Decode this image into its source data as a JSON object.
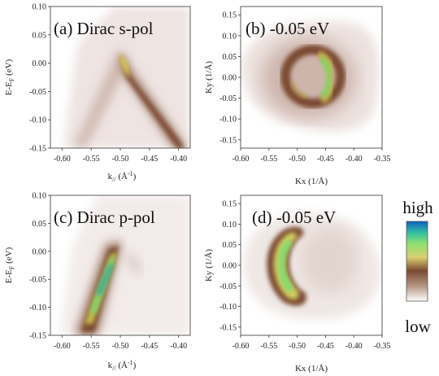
{
  "chart_data": [
    {
      "type": "heatmap",
      "panel": "(a)",
      "title": "(a)  Dirac s-pol",
      "xlabel": "k// (Å-1)",
      "ylabel": "E-EF (eV)",
      "xlim": [
        -0.62,
        -0.38
      ],
      "ylim": [
        -0.15,
        0.1
      ],
      "xticks": [
        "-0.60",
        "-0.55",
        "-0.50",
        "-0.45",
        "-0.40"
      ],
      "yticks": [
        "0.10",
        "0.05",
        "0.00",
        "-0.05",
        "-0.10",
        "-0.15"
      ],
      "feature": {
        "shape": "inverted-V band",
        "apex": [
          -0.5,
          0.02
        ],
        "peak_intensity": 0.75
      }
    },
    {
      "type": "heatmap",
      "panel": "(b)",
      "title": "(b)  -0.05 eV",
      "xlabel": "Kx (1/Å)",
      "ylabel": "Ky (1/Å)",
      "xlim": [
        -0.6,
        -0.35
      ],
      "ylim": [
        -0.17,
        0.17
      ],
      "xticks": [
        "-0.60",
        "-0.55",
        "-0.50",
        "-0.45",
        "-0.40",
        "-0.35"
      ],
      "yticks": [
        "0.15",
        "0.10",
        "0.05",
        "0.00",
        "-0.05",
        "-0.10",
        "-0.15"
      ],
      "feature": {
        "shape": "ring",
        "center": [
          -0.49,
          0.0
        ],
        "radius": 0.035,
        "peak_intensity": 0.9
      }
    },
    {
      "type": "heatmap",
      "panel": "(c)",
      "title": "(c)  Dirac p-pol",
      "xlabel": "k// (Å-1)",
      "ylabel": "E-EF (eV)",
      "xlim": [
        -0.62,
        -0.38
      ],
      "ylim": [
        -0.15,
        0.1
      ],
      "xticks": [
        "-0.60",
        "-0.55",
        "-0.50",
        "-0.45",
        "-0.40"
      ],
      "yticks": [
        "0.10",
        "0.05",
        "0.00",
        "-0.05",
        "-0.10",
        "-0.15"
      ],
      "feature": {
        "shape": "left band branch",
        "from": [
          -0.51,
          0.0
        ],
        "to": [
          -0.58,
          -0.15
        ],
        "peak_intensity": 1.0
      }
    },
    {
      "type": "heatmap",
      "panel": "(d)",
      "title": "(d)  -0.05 eV",
      "xlabel": "Kx (1/Å)",
      "ylabel": "Ky (1/Å)",
      "xlim": [
        -0.6,
        -0.35
      ],
      "ylim": [
        -0.17,
        0.17
      ],
      "xticks": [
        "-0.60",
        "-0.55",
        "-0.50",
        "-0.45",
        "-0.40",
        "-0.35"
      ],
      "yticks": [
        "0.15",
        "0.10",
        "0.05",
        "0.00",
        "-0.05",
        "-0.10",
        "-0.15"
      ],
      "feature": {
        "shape": "crescent (left half of ring)",
        "center": [
          -0.51,
          0.0
        ],
        "peak_intensity": 0.95
      }
    }
  ],
  "colorbar": {
    "high_label": "high",
    "low_label": "low",
    "colors": [
      "#ffffff",
      "#b89a8a",
      "#7a4a30",
      "#d8d070",
      "#90e070",
      "#30c0a0",
      "#1060c0"
    ]
  }
}
